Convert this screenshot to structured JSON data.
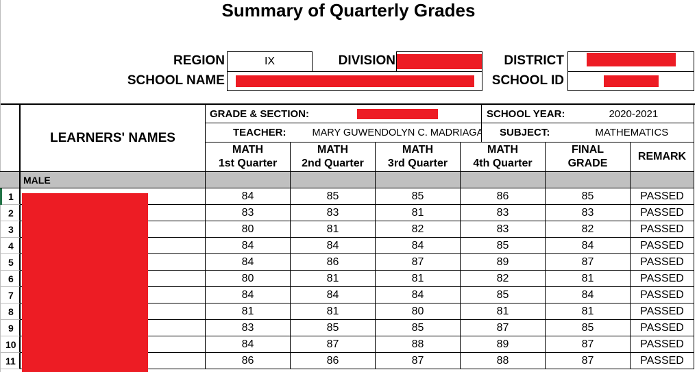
{
  "title": "Summary of Quarterly Grades",
  "info": {
    "region_label": "REGION",
    "region": "IX",
    "division_label": "DIVISION",
    "district_label": "DISTRICT",
    "school_name_label": "SCHOOL NAME",
    "school_id_label": "SCHOOL ID"
  },
  "table": {
    "names_header": "LEARNERS' NAMES",
    "grade_section_label": "GRADE & SECTION:",
    "school_year_label": "SCHOOL YEAR:",
    "school_year": "2020-2021",
    "teacher_label": "TEACHER:",
    "teacher": "MARY GUWENDOLYN C. MADRIAGA",
    "subject_label": "SUBJECT:",
    "subject": "MATHEMATICS",
    "columns": [
      {
        "l1": "MATH",
        "l2": "1st Quarter"
      },
      {
        "l1": "MATH",
        "l2": "2nd Quarter"
      },
      {
        "l1": "MATH",
        "l2": "3rd Quarter"
      },
      {
        "l1": "MATH",
        "l2": "4th Quarter"
      },
      {
        "l1": "FINAL",
        "l2": "GRADE"
      },
      {
        "l1": "REMARK",
        "l2": ""
      }
    ],
    "group_label": "MALE",
    "rows": [
      {
        "n": "1",
        "v": [
          "84",
          "85",
          "85",
          "86",
          "85",
          "PASSED"
        ]
      },
      {
        "n": "2",
        "v": [
          "83",
          "83",
          "81",
          "83",
          "83",
          "PASSED"
        ]
      },
      {
        "n": "3",
        "v": [
          "80",
          "81",
          "82",
          "83",
          "82",
          "PASSED"
        ]
      },
      {
        "n": "4",
        "v": [
          "84",
          "84",
          "84",
          "85",
          "84",
          "PASSED"
        ]
      },
      {
        "n": "5",
        "v": [
          "84",
          "86",
          "87",
          "89",
          "87",
          "PASSED"
        ]
      },
      {
        "n": "6",
        "v": [
          "80",
          "81",
          "81",
          "82",
          "81",
          "PASSED"
        ]
      },
      {
        "n": "7",
        "v": [
          "84",
          "84",
          "84",
          "85",
          "84",
          "PASSED"
        ]
      },
      {
        "n": "8",
        "v": [
          "81",
          "81",
          "80",
          "81",
          "81",
          "PASSED"
        ]
      },
      {
        "n": "9",
        "v": [
          "83",
          "85",
          "85",
          "87",
          "85",
          "PASSED"
        ]
      },
      {
        "n": "10",
        "v": [
          "84",
          "87",
          "88",
          "89",
          "87",
          "PASSED"
        ]
      },
      {
        "n": "11",
        "v": [
          "86",
          "86",
          "87",
          "88",
          "87",
          "PASSED"
        ]
      }
    ]
  }
}
